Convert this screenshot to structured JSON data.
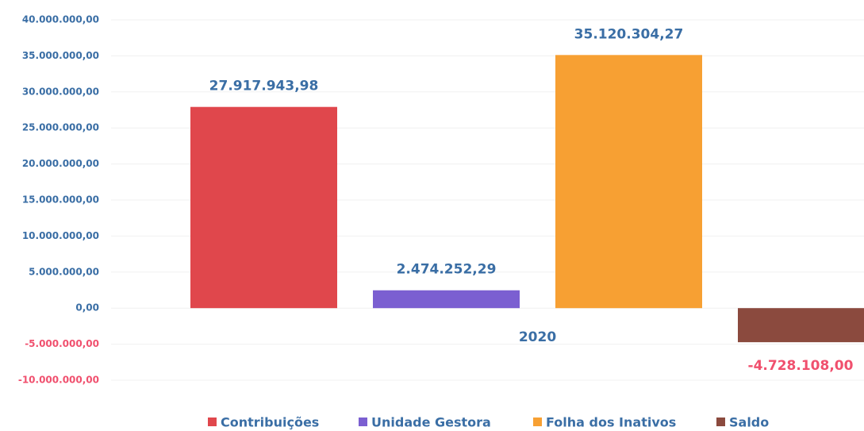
{
  "chart_data": {
    "type": "bar",
    "categories": [
      "2020"
    ],
    "series": [
      {
        "name": "Contribuições",
        "color": "#e0474c",
        "values": [
          27917943.98
        ],
        "value_labels": [
          "27.917.943,98"
        ]
      },
      {
        "name": "Unidade Gestora",
        "color": "#7b5fd1",
        "values": [
          2474252.29
        ],
        "value_labels": [
          "2.474.252,29"
        ]
      },
      {
        "name": "Folha dos Inativos",
        "color": "#f7a033",
        "values": [
          35120304.27
        ],
        "value_labels": [
          "35.120.304,27"
        ]
      },
      {
        "name": "Saldo",
        "color": "#8b4a3e",
        "values": [
          -4728108.0
        ],
        "value_labels": [
          "-4.728.108,00"
        ]
      }
    ],
    "ylim": [
      -10000000,
      40000000
    ],
    "yticks": [
      {
        "value": -10000000,
        "label": "-10.000.000,00"
      },
      {
        "value": -5000000,
        "label": "-5.000.000,00"
      },
      {
        "value": 0,
        "label": "0,00"
      },
      {
        "value": 5000000,
        "label": "5.000.000,00"
      },
      {
        "value": 10000000,
        "label": "10.000.000,00"
      },
      {
        "value": 15000000,
        "label": "15.000.000,00"
      },
      {
        "value": 20000000,
        "label": "20.000.000,00"
      },
      {
        "value": 25000000,
        "label": "25.000.000,00"
      },
      {
        "value": 30000000,
        "label": "30.000.000,00"
      },
      {
        "value": 35000000,
        "label": "35.000.000,00"
      },
      {
        "value": 40000000,
        "label": "40.000.000,00"
      }
    ],
    "legend": "bottom"
  }
}
